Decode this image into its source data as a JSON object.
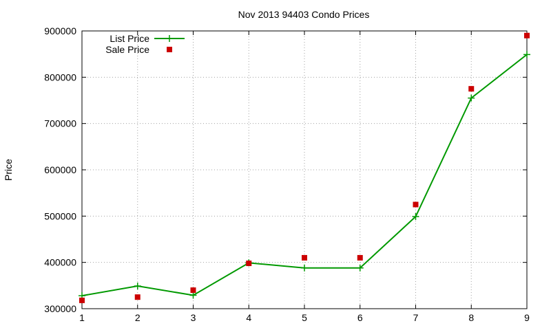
{
  "chart_data": {
    "type": "line",
    "title": "Nov 2013 94403 Condo Prices",
    "xlabel": "",
    "ylabel": "Price",
    "x": [
      1,
      2,
      3,
      4,
      5,
      6,
      7,
      8,
      9
    ],
    "xlim": [
      1,
      9
    ],
    "ylim": [
      300000,
      900000
    ],
    "xticks": [
      "1",
      "2",
      "3",
      "4",
      "5",
      "6",
      "7",
      "8",
      "9"
    ],
    "yticks": [
      "300000",
      "400000",
      "500000",
      "600000",
      "700000",
      "800000",
      "900000"
    ],
    "grid": true,
    "legend_position": "top-left",
    "series": [
      {
        "name": "List Price",
        "style": "line+cross-markers",
        "color": "#009900",
        "values": [
          328000,
          349000,
          329000,
          399000,
          388000,
          388000,
          499000,
          755000,
          849000
        ]
      },
      {
        "name": "Sale Price",
        "style": "square-markers",
        "color": "#cc0000",
        "values": [
          318000,
          325000,
          340000,
          398000,
          410000,
          410000,
          525000,
          775000,
          890000
        ]
      }
    ]
  }
}
